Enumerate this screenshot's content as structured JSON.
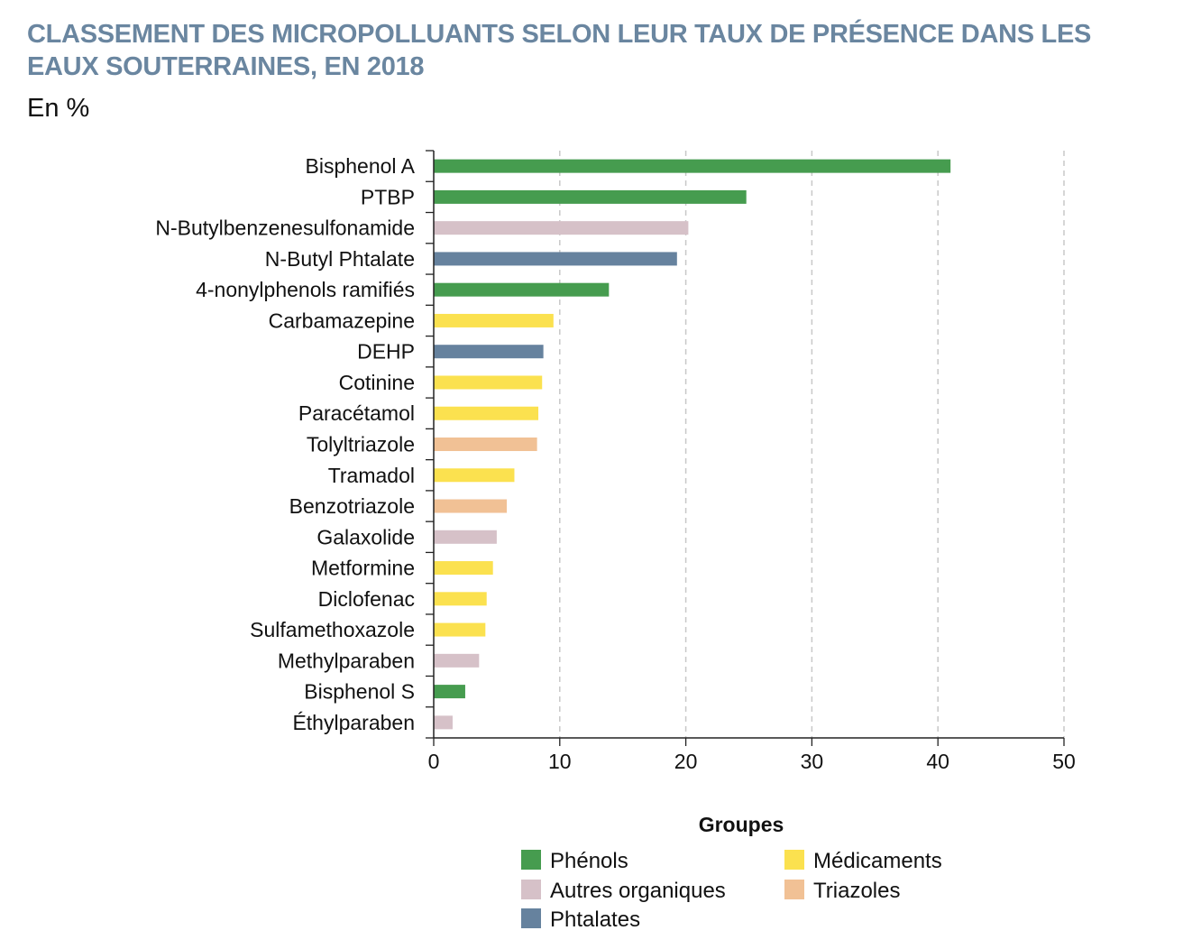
{
  "chart_data": {
    "type": "bar",
    "orientation": "horizontal",
    "title": "CLASSEMENT DES MICROPOLLUANTS SELON LEUR TAUX DE PRÉSENCE DANS LES EAUX SOUTERRAINES, EN 2018",
    "subtitle": "En %",
    "xlim": [
      0,
      50
    ],
    "xticks": [
      0,
      10,
      20,
      30,
      40,
      50
    ],
    "grid": true,
    "categories": [
      "Bisphenol A",
      "PTBP",
      "N-Butylbenzenesulfonamide",
      "N-Butyl Phtalate",
      "4-nonylphenols ramifiés",
      "Carbamazepine",
      "DEHP",
      "Cotinine",
      "Paracétamol",
      "Tolyltriazole",
      "Tramadol",
      "Benzotriazole",
      "Galaxolide",
      "Metformine",
      "Diclofenac",
      "Sulfamethoxazole",
      "Methylparaben",
      "Bisphenol S",
      "Éthylparaben"
    ],
    "values": [
      41.0,
      24.8,
      20.2,
      19.3,
      13.9,
      9.5,
      8.7,
      8.6,
      8.3,
      8.2,
      6.4,
      5.8,
      5.0,
      4.7,
      4.2,
      4.1,
      3.6,
      2.5,
      1.5
    ],
    "groups": [
      "Phénols",
      "Phénols",
      "Autres organiques",
      "Phtalates",
      "Phénols",
      "Médicaments",
      "Phtalates",
      "Médicaments",
      "Médicaments",
      "Triazoles",
      "Médicaments",
      "Triazoles",
      "Autres organiques",
      "Médicaments",
      "Médicaments",
      "Médicaments",
      "Autres organiques",
      "Phénols",
      "Autres organiques"
    ],
    "legend": {
      "title": "Groupes",
      "placement": "bottom-right",
      "items": [
        {
          "name": "Phénols",
          "color": "#469c4f"
        },
        {
          "name": "Médicaments",
          "color": "#fbe14f"
        },
        {
          "name": "Autres organiques",
          "color": "#d6c1c8"
        },
        {
          "name": "Triazoles",
          "color": "#f1c195"
        },
        {
          "name": "Phtalates",
          "color": "#66829e"
        }
      ]
    }
  }
}
